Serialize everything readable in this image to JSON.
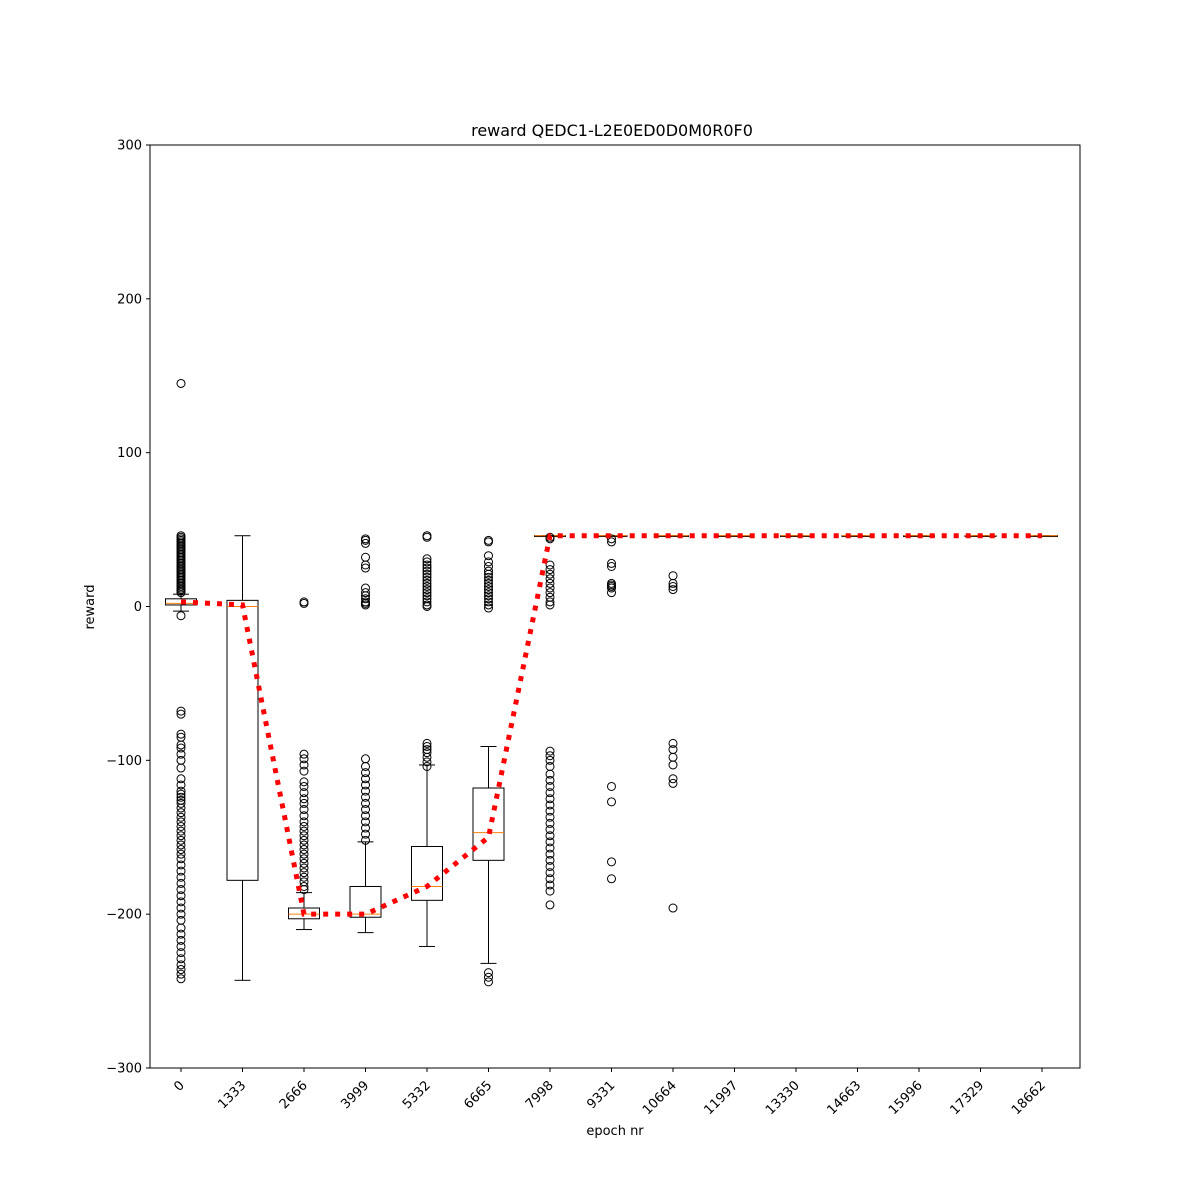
{
  "chart_data": {
    "type": "box",
    "title": "reward QEDC1-L2E0ED0D0M0R0F0",
    "xlabel": "epoch nr",
    "ylabel": "reward",
    "ylim": [
      -300,
      300
    ],
    "yticks": [
      -300,
      -200,
      -100,
      0,
      100,
      200,
      300
    ],
    "categories": [
      "0",
      "1333",
      "2666",
      "3999",
      "5332",
      "6665",
      "7998",
      "9331",
      "10664",
      "11997",
      "13330",
      "14663",
      "15996",
      "17329",
      "18662"
    ],
    "boxes": [
      {
        "q1": 1,
        "median": 2,
        "q3": 5,
        "whisker_low": -3,
        "whisker_high": 8,
        "outliers": [
          145,
          46,
          45,
          44,
          43,
          42,
          41,
          40,
          39,
          38,
          37,
          36,
          35,
          34,
          33,
          32,
          31,
          30,
          29,
          28,
          27,
          26,
          25,
          24,
          23,
          22,
          21,
          20,
          19,
          18,
          17,
          16,
          15,
          14,
          13,
          12,
          11,
          10,
          9,
          -6,
          -68,
          -70,
          -83,
          -85,
          -90,
          -92,
          -96,
          -100,
          -105,
          -112,
          -116,
          -120,
          -122,
          -124,
          -126,
          -128,
          -131,
          -134,
          -137,
          -140,
          -143,
          -146,
          -149,
          -152,
          -155,
          -158,
          -161,
          -164,
          -168,
          -172,
          -176,
          -180,
          -184,
          -188,
          -192,
          -196,
          -200,
          -204,
          -209,
          -213,
          -217,
          -221,
          -225,
          -229,
          -233,
          -236,
          -239,
          -242
        ]
      },
      {
        "q1": -178,
        "median": 0,
        "q3": 4,
        "whisker_low": -243,
        "whisker_high": 46,
        "outliers": []
      },
      {
        "q1": -203,
        "median": -200,
        "q3": -196,
        "whisker_low": -210,
        "whisker_high": -186,
        "outliers": [
          3,
          2,
          -96,
          -99,
          -103,
          -107,
          -114,
          -117,
          -121,
          -125,
          -128,
          -132,
          -136,
          -140,
          -143,
          -146,
          -149,
          -152,
          -155,
          -158,
          -161,
          -164,
          -167,
          -170,
          -173,
          -176,
          -179,
          -182,
          -184
        ]
      },
      {
        "q1": -202,
        "median": -200,
        "q3": -182,
        "whisker_low": -212,
        "whisker_high": -153,
        "outliers": [
          44,
          43,
          41,
          32,
          27,
          25,
          12,
          9,
          7,
          5,
          3,
          2,
          1,
          -99,
          -104,
          -108,
          -112,
          -116,
          -120,
          -124,
          -128,
          -132,
          -136,
          -140,
          -144,
          -148,
          -152
        ]
      },
      {
        "q1": -191,
        "median": -182,
        "q3": -156,
        "whisker_low": -221,
        "whisker_high": -103,
        "outliers": [
          46,
          45,
          31,
          29,
          27,
          25,
          23,
          21,
          19,
          17,
          15,
          13,
          11,
          9,
          7,
          5,
          3,
          1,
          0,
          -89,
          -91,
          -93,
          -95,
          -98,
          -101,
          -104
        ]
      },
      {
        "q1": -165,
        "median": -147,
        "q3": -118,
        "whisker_low": -232,
        "whisker_high": -91,
        "outliers": [
          43,
          42,
          33,
          29,
          26,
          23,
          21,
          19,
          17,
          15,
          13,
          11,
          9,
          7,
          5,
          3,
          1,
          -1,
          -238,
          -241,
          -244
        ]
      },
      {
        "q1": 46,
        "median": 46,
        "q3": 46,
        "whisker_low": 46,
        "whisker_high": 46,
        "outliers": [
          45,
          44,
          27,
          24,
          21,
          18,
          15,
          12,
          9,
          6,
          3,
          1,
          -94,
          -97,
          -100,
          -104,
          -109,
          -113,
          -117,
          -121,
          -125,
          -129,
          -133,
          -137,
          -141,
          -145,
          -149,
          -153,
          -157,
          -161,
          -165,
          -169,
          -173,
          -177,
          -181,
          -185,
          -194
        ]
      },
      {
        "q1": 46,
        "median": 46,
        "q3": 46,
        "whisker_low": 46,
        "whisker_high": 46,
        "outliers": [
          44,
          42,
          28,
          26,
          15,
          14,
          13,
          12,
          9,
          -117,
          -127,
          -166,
          -177
        ]
      },
      {
        "q1": 46,
        "median": 46,
        "q3": 46,
        "whisker_low": 46,
        "whisker_high": 46,
        "outliers": [
          20,
          15,
          13,
          11,
          -89,
          -93,
          -98,
          -103,
          -112,
          -115,
          -196
        ]
      },
      {
        "q1": 46,
        "median": 46,
        "q3": 46,
        "whisker_low": 46,
        "whisker_high": 46,
        "outliers": []
      },
      {
        "q1": 46,
        "median": 46,
        "q3": 46,
        "whisker_low": 46,
        "whisker_high": 46,
        "outliers": []
      },
      {
        "q1": 46,
        "median": 46,
        "q3": 46,
        "whisker_low": 46,
        "whisker_high": 46,
        "outliers": []
      },
      {
        "q1": 46,
        "median": 46,
        "q3": 46,
        "whisker_low": 46,
        "whisker_high": 46,
        "outliers": []
      },
      {
        "q1": 46,
        "median": 46,
        "q3": 46,
        "whisker_low": 46,
        "whisker_high": 46,
        "outliers": []
      },
      {
        "q1": 46,
        "median": 46,
        "q3": 46,
        "whisker_low": 46,
        "whisker_high": 46,
        "outliers": []
      }
    ],
    "mean_line": {
      "values": [
        3,
        1,
        -200,
        -200,
        -182,
        -150,
        46,
        46,
        46,
        46,
        46,
        46,
        46,
        46,
        46
      ],
      "color": "#ff0000",
      "style": "dotted"
    },
    "colors": {
      "box": "#000000",
      "median": "#ff7f0e",
      "mean_line": "#ff0000"
    },
    "grid": false,
    "legend": "none"
  }
}
